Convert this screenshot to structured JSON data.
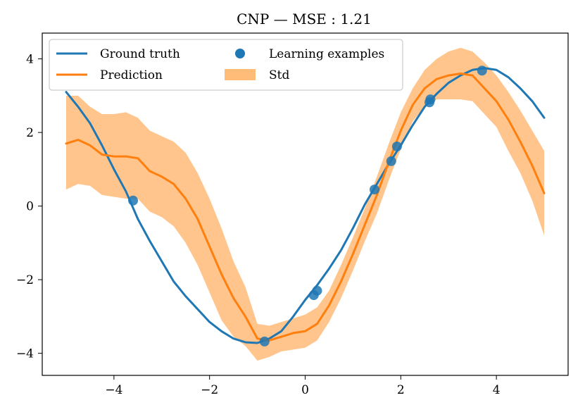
{
  "chart_data": {
    "type": "line",
    "title": "CNP — MSE : 1.21",
    "xlabel": "",
    "ylabel": "",
    "xlim": [
      -5.5,
      5.5
    ],
    "ylim": [
      -4.6,
      4.7
    ],
    "x_ticks": [
      -4,
      -2,
      0,
      2,
      4
    ],
    "x_tick_labels": [
      "−4",
      "−2",
      "0",
      "2",
      "4"
    ],
    "y_ticks": [
      -4,
      -2,
      0,
      2,
      4
    ],
    "y_tick_labels": [
      "−4",
      "−2",
      "0",
      "2",
      "4"
    ],
    "grid": false,
    "legend_position": "top-left",
    "series": [
      {
        "name": "Ground truth",
        "kind": "line",
        "color": "#1f77b4",
        "x": [
          -5.0,
          -4.75,
          -4.5,
          -4.25,
          -4.0,
          -3.75,
          -3.5,
          -3.25,
          -3.0,
          -2.75,
          -2.5,
          -2.25,
          -2.0,
          -1.75,
          -1.5,
          -1.25,
          -1.0,
          -0.75,
          -0.5,
          -0.25,
          0.0,
          0.25,
          0.5,
          0.75,
          1.0,
          1.25,
          1.5,
          1.75,
          2.0,
          2.25,
          2.5,
          2.75,
          3.0,
          3.25,
          3.5,
          3.75,
          4.0,
          4.25,
          4.5,
          4.75,
          5.0
        ],
        "y": [
          3.1,
          2.7,
          2.25,
          1.65,
          1.0,
          0.4,
          -0.35,
          -0.95,
          -1.5,
          -2.05,
          -2.45,
          -2.8,
          -3.15,
          -3.4,
          -3.6,
          -3.7,
          -3.72,
          -3.6,
          -3.4,
          -3.0,
          -2.55,
          -2.15,
          -1.7,
          -1.2,
          -0.6,
          0.05,
          0.6,
          1.15,
          1.65,
          2.2,
          2.7,
          3.05,
          3.35,
          3.55,
          3.7,
          3.75,
          3.7,
          3.5,
          3.2,
          2.85,
          2.4
        ]
      },
      {
        "name": "Prediction",
        "kind": "line",
        "color": "#ff7f0e",
        "x": [
          -5.0,
          -4.75,
          -4.5,
          -4.25,
          -4.0,
          -3.75,
          -3.5,
          -3.25,
          -3.0,
          -2.75,
          -2.5,
          -2.25,
          -2.0,
          -1.75,
          -1.5,
          -1.25,
          -1.0,
          -0.75,
          -0.5,
          -0.25,
          0.0,
          0.25,
          0.5,
          0.75,
          1.0,
          1.25,
          1.5,
          1.75,
          2.0,
          2.25,
          2.5,
          2.75,
          3.0,
          3.25,
          3.5,
          3.75,
          4.0,
          4.25,
          4.5,
          4.75,
          5.0
        ],
        "y": [
          1.7,
          1.8,
          1.65,
          1.4,
          1.35,
          1.35,
          1.3,
          0.95,
          0.8,
          0.6,
          0.2,
          -0.35,
          -1.1,
          -1.85,
          -2.5,
          -3.0,
          -3.6,
          -3.65,
          -3.55,
          -3.45,
          -3.4,
          -3.2,
          -2.7,
          -2.05,
          -1.3,
          -0.5,
          0.3,
          1.2,
          2.05,
          2.75,
          3.2,
          3.45,
          3.55,
          3.6,
          3.55,
          3.2,
          2.85,
          2.35,
          1.75,
          1.1,
          0.35
        ]
      },
      {
        "name": "Learning examples",
        "kind": "scatter",
        "color": "#1f77b4",
        "x": [
          -3.6,
          -0.85,
          0.18,
          0.25,
          1.45,
          1.8,
          1.92,
          2.6,
          2.62,
          3.7
        ],
        "y": [
          0.15,
          -3.68,
          -2.42,
          -2.3,
          0.45,
          1.22,
          1.62,
          2.82,
          2.9,
          3.68
        ]
      },
      {
        "name": "Std",
        "kind": "band",
        "color": "#ffbb78",
        "x": [
          -5.0,
          -4.75,
          -4.5,
          -4.25,
          -4.0,
          -3.75,
          -3.5,
          -3.25,
          -3.0,
          -2.75,
          -2.5,
          -2.25,
          -2.0,
          -1.75,
          -1.5,
          -1.25,
          -1.0,
          -0.75,
          -0.5,
          -0.25,
          0.0,
          0.25,
          0.5,
          0.75,
          1.0,
          1.25,
          1.5,
          1.75,
          2.0,
          2.25,
          2.5,
          2.75,
          3.0,
          3.25,
          3.5,
          3.75,
          4.0,
          4.25,
          4.5,
          4.75,
          5.0
        ],
        "upper": [
          3.0,
          3.0,
          2.7,
          2.5,
          2.5,
          2.55,
          2.4,
          2.05,
          1.9,
          1.75,
          1.45,
          0.9,
          0.2,
          -0.6,
          -1.5,
          -2.2,
          -3.2,
          -3.25,
          -3.15,
          -3.05,
          -2.95,
          -2.75,
          -2.3,
          -1.6,
          -0.85,
          -0.05,
          0.8,
          1.7,
          2.55,
          3.2,
          3.7,
          4.0,
          4.2,
          4.3,
          4.2,
          3.9,
          3.55,
          3.1,
          2.6,
          2.05,
          1.5
        ],
        "lower": [
          0.45,
          0.6,
          0.55,
          0.3,
          0.25,
          0.2,
          0.2,
          -0.15,
          -0.3,
          -0.55,
          -1.0,
          -1.6,
          -2.35,
          -3.1,
          -3.55,
          -3.8,
          -4.2,
          -4.1,
          -3.95,
          -3.9,
          -3.85,
          -3.65,
          -3.15,
          -2.5,
          -1.75,
          -0.95,
          -0.2,
          0.7,
          1.55,
          2.3,
          2.7,
          2.9,
          2.9,
          2.9,
          2.85,
          2.5,
          2.15,
          1.5,
          0.9,
          0.15,
          -0.8
        ]
      }
    ]
  }
}
